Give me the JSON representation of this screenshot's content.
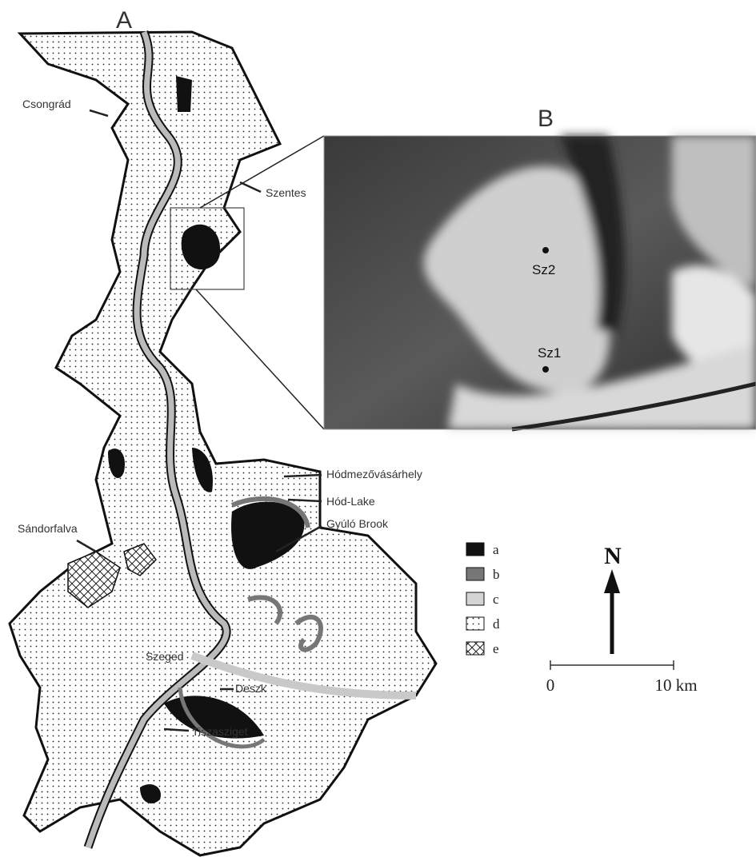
{
  "panels": [
    {
      "label": "A"
    },
    {
      "label": "B"
    }
  ],
  "places": [
    {
      "name": "Csongrád"
    },
    {
      "name": "Szentes"
    },
    {
      "name": "Hódmezővásárhely"
    },
    {
      "name": "Hód-Lake"
    },
    {
      "name": "Gyúló Brook"
    },
    {
      "name": "Sándorfalva"
    },
    {
      "name": "Szeged"
    },
    {
      "name": "Deszk"
    },
    {
      "name": "Tiszasziget"
    }
  ],
  "sites": [
    {
      "name": "Sz2"
    },
    {
      "name": "Sz1"
    }
  ],
  "legend": [
    {
      "key": "a"
    },
    {
      "key": "b"
    },
    {
      "key": "c"
    },
    {
      "key": "d"
    },
    {
      "key": "e"
    }
  ],
  "north": "N",
  "scale": {
    "start": "0",
    "end": "10 km"
  }
}
